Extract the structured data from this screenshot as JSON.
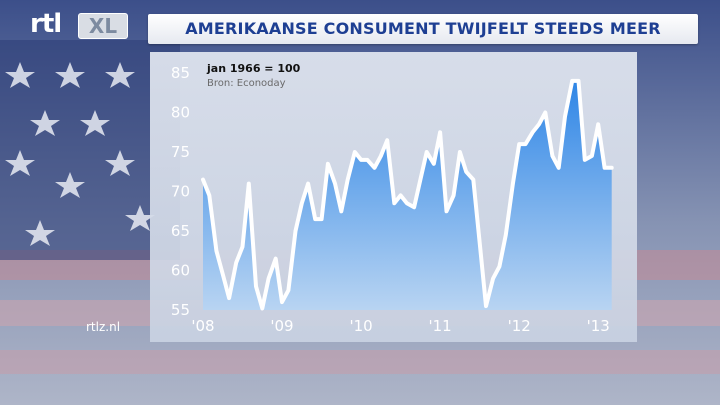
{
  "brand": {
    "rtl": "rtl",
    "xl": "XL"
  },
  "header": {
    "title": "AMERIKAANSE CONSUMENT TWIJFELT STEEDS MEER"
  },
  "footer": {
    "site": "rtlz.nl"
  },
  "colors": {
    "title_text": "#1e3f93",
    "area_top": "#3a8fe8",
    "area_bottom": "#a9ccef",
    "line": "#ffffff",
    "panel": "#d2dae8"
  },
  "chart_data": {
    "type": "area",
    "title": "AMERIKAANSE CONSUMENT TWIJFELT STEEDS MEER",
    "subtitle": "jan 1966 = 100",
    "source": "Bron: Econoday",
    "xlabel": "",
    "ylabel": "",
    "ylim": [
      55,
      85
    ],
    "yticks": [
      55,
      60,
      65,
      70,
      75,
      80,
      85
    ],
    "xlim": [
      2008,
      2013.25
    ],
    "xticks": [
      {
        "x": 2008,
        "label": "'08"
      },
      {
        "x": 2009,
        "label": "'09"
      },
      {
        "x": 2010,
        "label": "'10"
      },
      {
        "x": 2011,
        "label": "'11"
      },
      {
        "x": 2012,
        "label": "'12"
      },
      {
        "x": 2013,
        "label": "'13"
      }
    ],
    "grid": false,
    "legend": "none",
    "x": [
      2008.0,
      2008.08,
      2008.17,
      2008.25,
      2008.33,
      2008.42,
      2008.5,
      2008.58,
      2008.67,
      2008.75,
      2008.83,
      2008.92,
      2009.0,
      2009.08,
      2009.17,
      2009.25,
      2009.33,
      2009.42,
      2009.5,
      2009.58,
      2009.67,
      2009.75,
      2009.83,
      2009.92,
      2010.0,
      2010.08,
      2010.17,
      2010.25,
      2010.33,
      2010.42,
      2010.5,
      2010.58,
      2010.67,
      2010.75,
      2010.83,
      2010.92,
      2011.0,
      2011.08,
      2011.17,
      2011.25,
      2011.33,
      2011.42,
      2011.5,
      2011.58,
      2011.67,
      2011.75,
      2011.83,
      2011.92,
      2012.0,
      2012.08,
      2012.17,
      2012.25,
      2012.33,
      2012.42,
      2012.5,
      2012.58,
      2012.67,
      2012.75,
      2012.83,
      2012.92,
      2013.0,
      2013.08,
      2013.17
    ],
    "values": [
      71.5,
      69.5,
      62.5,
      59.5,
      56.5,
      61.0,
      63.0,
      71.0,
      58.0,
      55.2,
      59.0,
      61.5,
      56.0,
      57.5,
      65.0,
      68.5,
      71.0,
      66.5,
      66.5,
      73.5,
      71.0,
      67.5,
      71.5,
      75.0,
      74.0,
      74.0,
      73.0,
      74.5,
      76.5,
      68.5,
      69.5,
      68.5,
      68.0,
      71.5,
      75.0,
      73.5,
      77.5,
      67.5,
      69.5,
      75.0,
      72.5,
      71.5,
      63.5,
      55.5,
      59.0,
      60.5,
      64.5,
      71.0,
      76.0,
      76.0,
      77.5,
      78.5,
      80.0,
      74.5,
      73.0,
      79.5,
      84.0,
      84.0,
      74.0,
      74.5,
      78.5,
      73.0,
      73.0
    ]
  }
}
